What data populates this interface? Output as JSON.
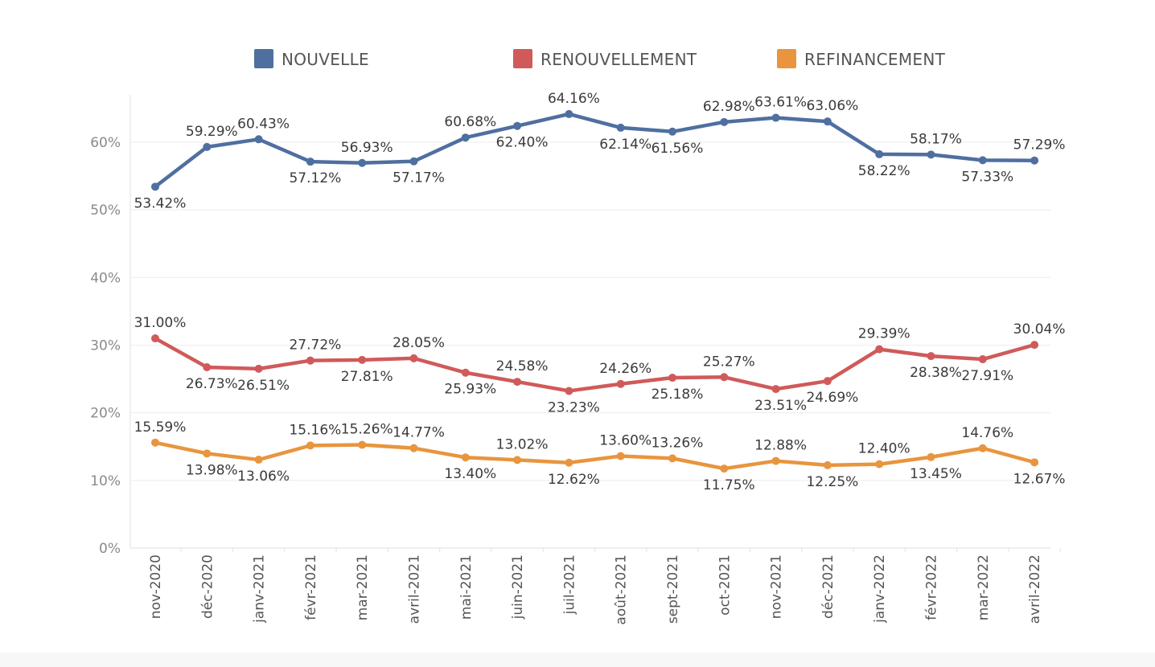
{
  "chart_data": {
    "type": "line",
    "categories": [
      "nov-2020",
      "déc-2020",
      "janv-2021",
      "févr-2021",
      "mar-2021",
      "avril-2021",
      "mai-2021",
      "juin-2021",
      "juil-2021",
      "août-2021",
      "sept-2021",
      "oct-2021",
      "nov-2021",
      "déc-2021",
      "janv-2022",
      "févr-2022",
      "mar-2022",
      "avril-2022"
    ],
    "y_ticks": [
      "0%",
      "10%",
      "20%",
      "30%",
      "40%",
      "50%",
      "60%"
    ],
    "ylim": [
      0,
      67
    ],
    "grid": true,
    "legend_position": "top",
    "series": [
      {
        "name": "NOUVELLE",
        "color": "#4f6fa0",
        "values": [
          53.42,
          59.29,
          60.43,
          57.12,
          56.93,
          57.17,
          60.68,
          62.4,
          64.16,
          62.14,
          61.56,
          62.98,
          63.61,
          63.06,
          58.22,
          58.17,
          57.33,
          57.29
        ],
        "labels": [
          "53.42%",
          "59.29%",
          "60.43%",
          "57.12%",
          "56.93%",
          "57.17%",
          "60.68%",
          "62.40%",
          "64.16%",
          "62.14%",
          "61.56%",
          "62.98%",
          "63.61%",
          "63.06%",
          "58.22%",
          "58.17%",
          "57.33%",
          "57.29%"
        ],
        "label_side": [
          "below",
          "above",
          "above",
          "below",
          "above",
          "below",
          "above",
          "below",
          "above",
          "below",
          "below",
          "above",
          "above",
          "above",
          "below",
          "above",
          "below",
          "above"
        ]
      },
      {
        "name": "RENOUVELLEMENT",
        "color": "#d05a5a",
        "values": [
          31.0,
          26.73,
          26.51,
          27.72,
          27.81,
          28.05,
          25.93,
          24.58,
          23.23,
          24.26,
          25.18,
          25.27,
          23.51,
          24.69,
          29.39,
          28.38,
          27.91,
          30.04
        ],
        "labels": [
          "31.00%",
          "26.73%",
          "26.51%",
          "27.72%",
          "27.81%",
          "28.05%",
          "25.93%",
          "24.58%",
          "23.23%",
          "24.26%",
          "25.18%",
          "25.27%",
          "23.51%",
          "24.69%",
          "29.39%",
          "28.38%",
          "27.91%",
          "30.04%"
        ],
        "label_side": [
          "above",
          "below",
          "below",
          "above",
          "below",
          "above",
          "below",
          "above",
          "below",
          "above",
          "below",
          "above",
          "below",
          "below",
          "above",
          "below",
          "below",
          "above"
        ]
      },
      {
        "name": "REFINANCEMENT",
        "color": "#e8953e",
        "values": [
          15.59,
          13.98,
          13.06,
          15.16,
          15.26,
          14.77,
          13.4,
          13.02,
          12.62,
          13.6,
          13.26,
          11.75,
          12.88,
          12.25,
          12.4,
          13.45,
          14.76,
          12.67
        ],
        "labels": [
          "15.59%",
          "13.98%",
          "13.06%",
          "15.16%",
          "15.26%",
          "14.77%",
          "13.40%",
          "13.02%",
          "12.62%",
          "13.60%",
          "13.26%",
          "11.75%",
          "12.88%",
          "12.25%",
          "12.40%",
          "13.45%",
          "14.76%",
          "12.67%"
        ],
        "label_side": [
          "above",
          "below",
          "below",
          "above",
          "above",
          "above",
          "below",
          "above",
          "below",
          "above",
          "above",
          "below",
          "above",
          "below",
          "above",
          "below",
          "above",
          "below"
        ]
      }
    ]
  }
}
